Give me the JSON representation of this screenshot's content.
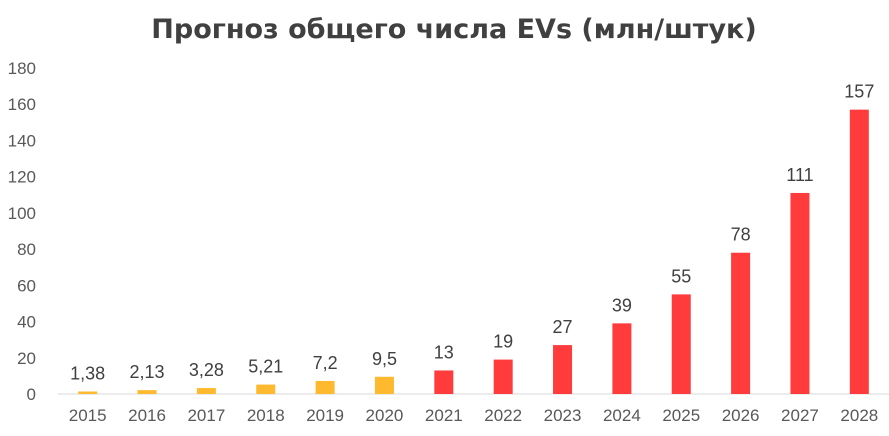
{
  "chart_data": {
    "type": "bar",
    "title": "Прогноз общего числа EVs (млн/штук)",
    "xlabel": "",
    "ylabel": "",
    "categories": [
      "2015",
      "2016",
      "2017",
      "2018",
      "2019",
      "2020",
      "2021",
      "2022",
      "2023",
      "2024",
      "2025",
      "2026",
      "2027",
      "2028"
    ],
    "values": [
      1.38,
      2.13,
      3.28,
      5.21,
      7.2,
      9.5,
      13,
      19,
      27,
      39,
      55,
      78,
      111,
      157
    ],
    "data_labels": [
      "1,38",
      "2,13",
      "3,28",
      "5,21",
      "7,2",
      "9,5",
      "13",
      "19",
      "27",
      "39",
      "55",
      "78",
      "111",
      "157"
    ],
    "ylim": [
      0,
      180
    ],
    "yticks": [
      "0",
      "20",
      "40",
      "60",
      "80",
      "100",
      "120",
      "140",
      "160",
      "180"
    ],
    "grid": false,
    "colors": {
      "actual": "#FFB92E",
      "forecast": "#FF3B3B",
      "title": "#404040",
      "axis": "#D9D9D9"
    },
    "actual_count": 6
  }
}
